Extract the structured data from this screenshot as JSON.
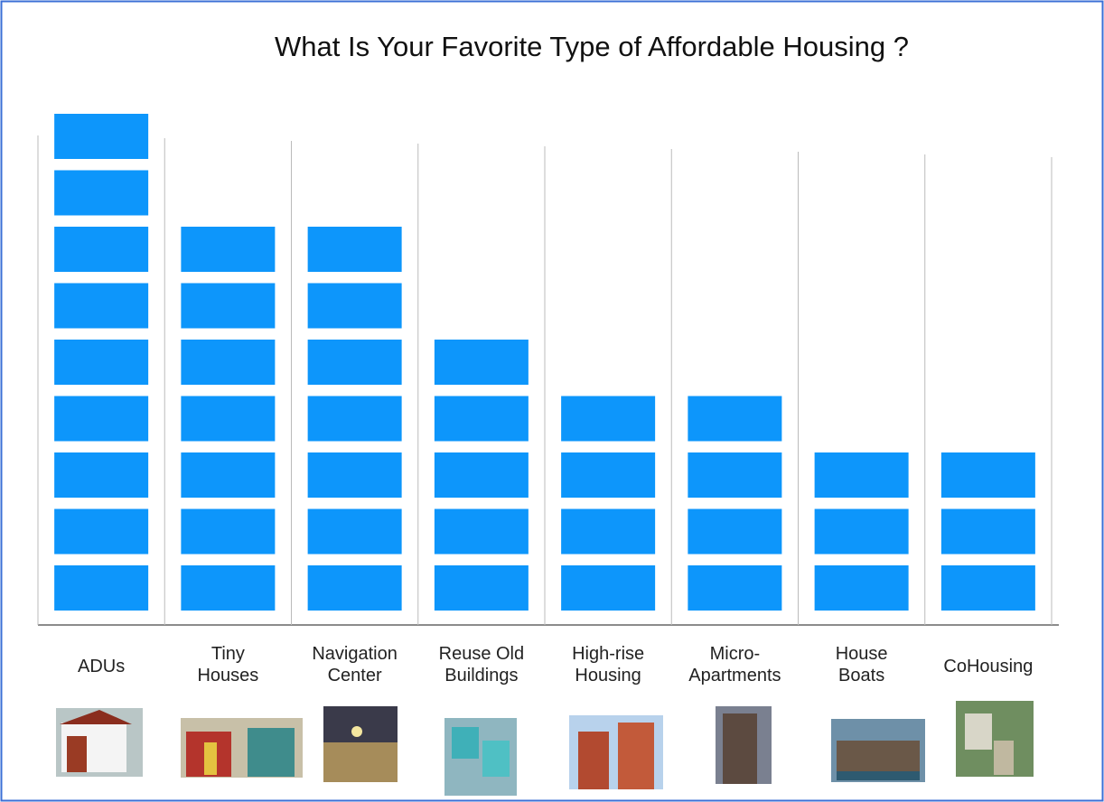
{
  "chart_data": {
    "type": "bar",
    "title": "What Is Your Favorite Type of Affordable Housing ?",
    "categories": [
      "ADUs",
      "Tiny Houses",
      "Navigation Center",
      "Reuse Old Buildings",
      "High-rise Housing",
      "Micro-Apartments",
      "House Boats",
      "CoHousing"
    ],
    "values": [
      9,
      7,
      7,
      5,
      4,
      4,
      3,
      3
    ],
    "color": "#0d96fb"
  }
}
